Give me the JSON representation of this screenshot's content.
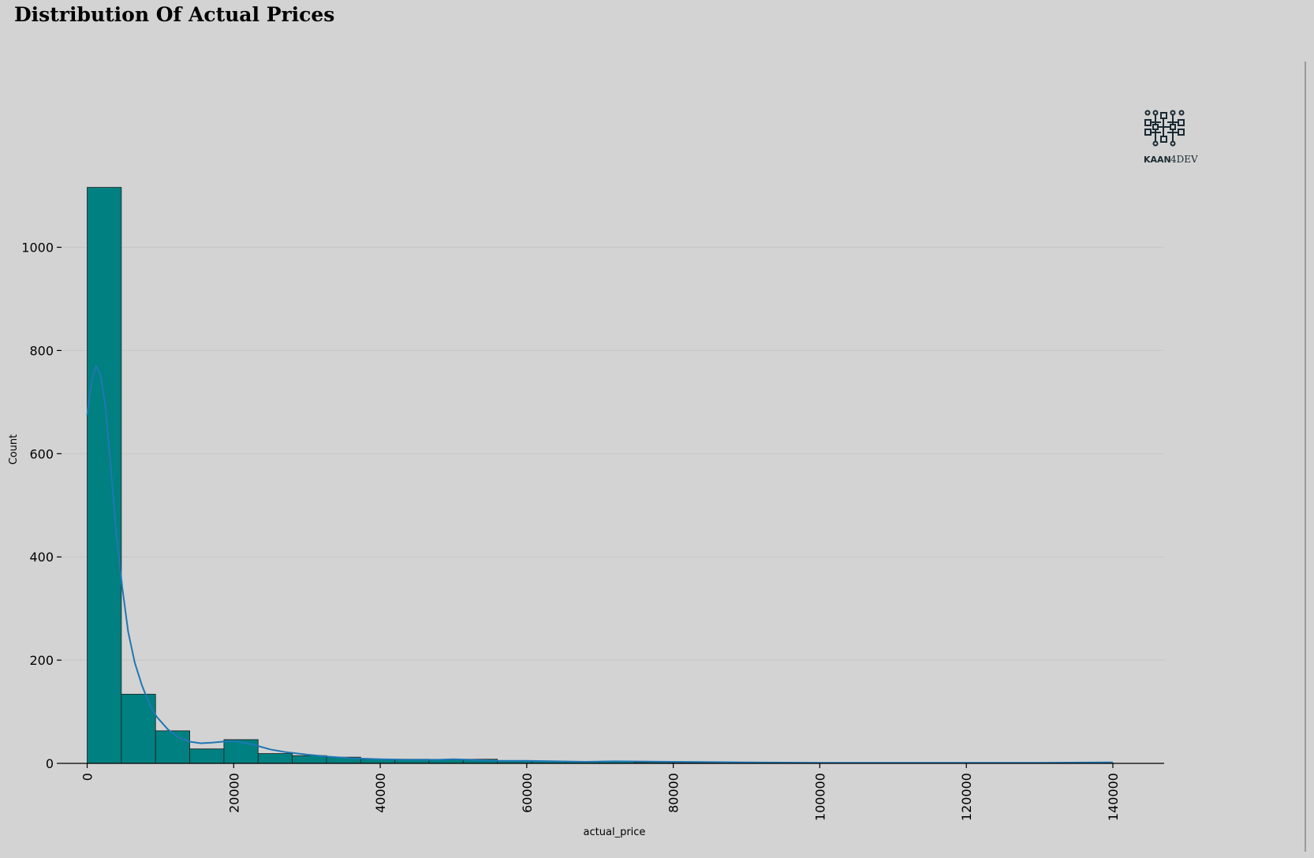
{
  "chart_data": {
    "type": "bar",
    "title": "Distribution Of Actual Prices",
    "xlabel": "actual_price",
    "ylabel": "Count",
    "xlim": [
      -3500,
      147000
    ],
    "ylim": [
      0,
      1120
    ],
    "xticks": [
      0,
      20000,
      40000,
      60000,
      80000,
      100000,
      120000,
      140000
    ],
    "yticks": [
      0,
      200,
      400,
      600,
      800,
      1000
    ],
    "grid": "y",
    "bin_width": 4667,
    "bins_start": [
      0,
      4667,
      9333,
      14000,
      18667,
      23333,
      28000,
      32667,
      37333,
      42000,
      46667,
      51333,
      56000,
      60667,
      65333,
      70000,
      74667,
      79333,
      84000,
      88667,
      93333,
      98000,
      102667,
      107333,
      112000,
      116667,
      121333,
      126000,
      130667,
      135333
    ],
    "values": [
      1116,
      134,
      63,
      28,
      46,
      19,
      15,
      12,
      8,
      8,
      7,
      8,
      5,
      4,
      3,
      3,
      2,
      1,
      1,
      1,
      0,
      0,
      0,
      0,
      0,
      0,
      0,
      0,
      0,
      1
    ],
    "bar_color": "#008080",
    "kde": {
      "color": "#1f77b4",
      "x": [
        0,
        600,
        1200,
        1800,
        2500,
        3200,
        4000,
        4800,
        5600,
        6500,
        7500,
        8500,
        9500,
        11000,
        12500,
        14000,
        15500,
        17000,
        18500,
        20000,
        21500,
        23000,
        25000,
        27000,
        30000,
        33000,
        36000,
        40000,
        44000,
        48000,
        50000,
        52000,
        56000,
        60000,
        64000,
        68000,
        72000,
        80000,
        90000,
        100000,
        110000,
        120000,
        130000,
        140000
      ],
      "y": [
        675,
        740,
        770,
        755,
        690,
        580,
        440,
        340,
        255,
        195,
        150,
        115,
        90,
        66,
        50,
        42,
        39,
        40,
        42,
        43,
        40,
        35,
        27,
        22,
        17,
        13,
        10,
        8,
        7,
        7,
        8,
        7,
        5,
        5,
        4,
        3,
        4,
        3,
        2,
        1,
        1,
        1,
        1,
        2
      ]
    }
  },
  "logo": {
    "text_bold": "KAAN",
    "text_light": "4DEV"
  }
}
